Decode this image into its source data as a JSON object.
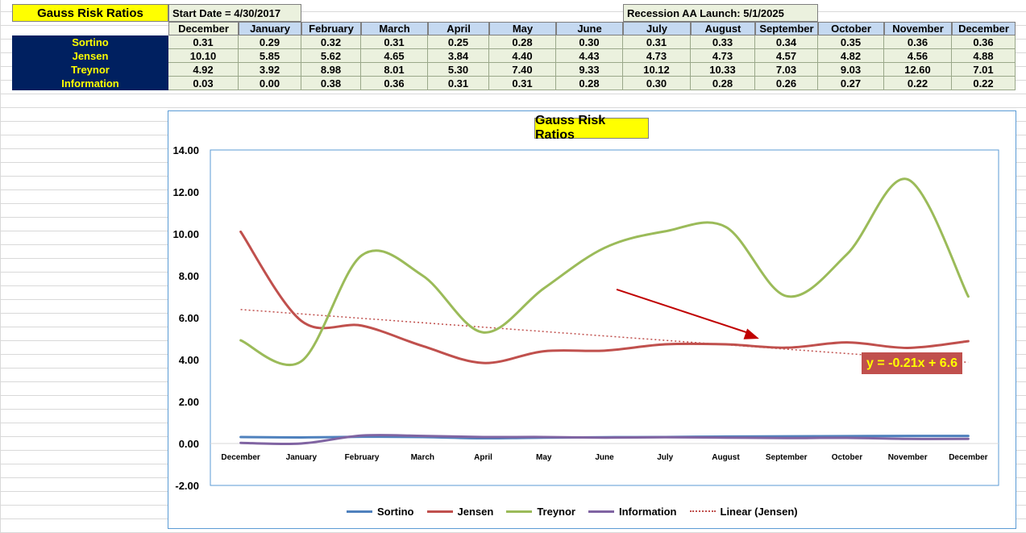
{
  "table": {
    "title": "Gauss Risk Ratios",
    "start_date": "Start Date = 4/30/2017",
    "recession_launch": "Recession AA Launch:  5/1/2025",
    "months": [
      "December",
      "January",
      "February",
      "March",
      "April",
      "May",
      "June",
      "July",
      "August",
      "September",
      "October",
      "November",
      "December"
    ],
    "rows": [
      {
        "label": "Sortino",
        "values": [
          "0.31",
          "0.29",
          "0.32",
          "0.31",
          "0.25",
          "0.28",
          "0.30",
          "0.31",
          "0.33",
          "0.34",
          "0.35",
          "0.36",
          "0.36"
        ]
      },
      {
        "label": "Jensen",
        "values": [
          "10.10",
          "5.85",
          "5.62",
          "4.65",
          "3.84",
          "4.40",
          "4.43",
          "4.73",
          "4.73",
          "4.57",
          "4.82",
          "4.56",
          "4.88"
        ]
      },
      {
        "label": "Treynor",
        "values": [
          "4.92",
          "3.92",
          "8.98",
          "8.01",
          "5.30",
          "7.40",
          "9.33",
          "10.12",
          "10.33",
          "7.03",
          "9.03",
          "12.60",
          "7.01"
        ]
      },
      {
        "label": "Information",
        "values": [
          "0.03",
          "0.00",
          "0.38",
          "0.36",
          "0.31",
          "0.31",
          "0.28",
          "0.30",
          "0.28",
          "0.26",
          "0.27",
          "0.22",
          "0.22"
        ]
      }
    ]
  },
  "chart_data": {
    "type": "line",
    "title": "Gauss Risk Ratios",
    "categories": [
      "December",
      "January",
      "February",
      "March",
      "April",
      "May",
      "June",
      "July",
      "August",
      "September",
      "October",
      "November",
      "December"
    ],
    "y_ticks": [
      "14.00",
      "12.00",
      "10.00",
      "8.00",
      "6.00",
      "4.00",
      "2.00",
      "0.00",
      "-2.00"
    ],
    "ylim": [
      -2,
      14
    ],
    "smooth": true,
    "grid": false,
    "legend_position": "bottom",
    "series": [
      {
        "name": "Sortino",
        "color": "#4f81bd",
        "values": [
          0.31,
          0.29,
          0.32,
          0.31,
          0.25,
          0.28,
          0.3,
          0.31,
          0.33,
          0.34,
          0.35,
          0.36,
          0.36
        ]
      },
      {
        "name": "Jensen",
        "color": "#c0504d",
        "values": [
          10.1,
          5.85,
          5.62,
          4.65,
          3.84,
          4.4,
          4.43,
          4.73,
          4.73,
          4.57,
          4.82,
          4.56,
          4.88
        ]
      },
      {
        "name": "Treynor",
        "color": "#9bbb59",
        "values": [
          4.92,
          3.92,
          8.98,
          8.01,
          5.3,
          7.4,
          9.33,
          10.12,
          10.33,
          7.03,
          9.03,
          12.6,
          7.01
        ]
      },
      {
        "name": "Information",
        "color": "#8064a2",
        "values": [
          0.03,
          0.0,
          0.38,
          0.36,
          0.31,
          0.31,
          0.28,
          0.3,
          0.28,
          0.26,
          0.27,
          0.22,
          0.22
        ]
      }
    ],
    "trendline": {
      "name": "Linear (Jensen)",
      "slope": -0.21,
      "intercept": 6.6,
      "label": "y = -0.21x + 6.6",
      "color": "#c0504d"
    },
    "annotation_arrow": {
      "color": "#c00000",
      "from": {
        "x": 7.2,
        "y": 7.35
      },
      "to": {
        "x": 9.55,
        "y": 5.0
      }
    }
  }
}
